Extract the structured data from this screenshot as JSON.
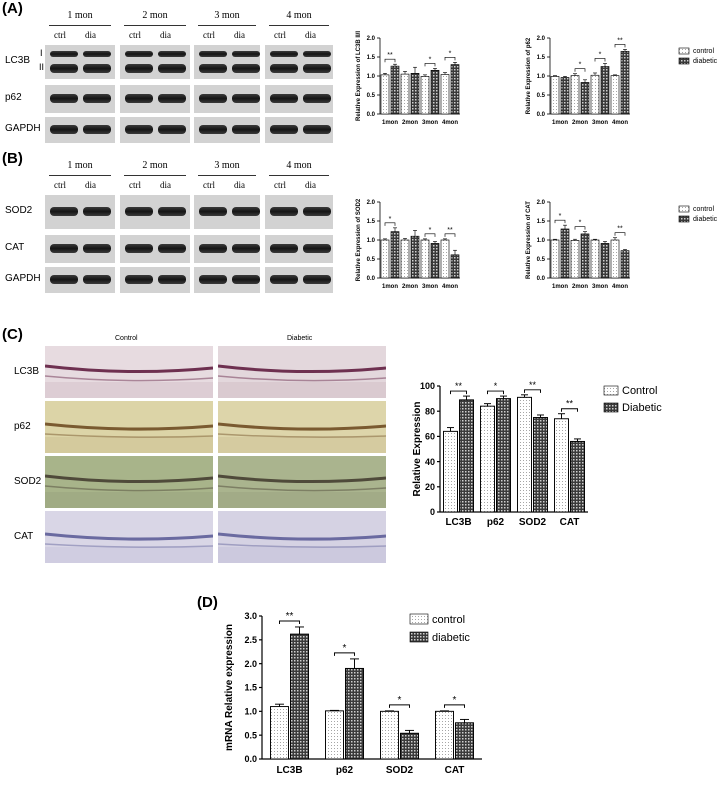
{
  "panels": {
    "a": "(A)",
    "b": "(B)",
    "c": "(C)",
    "d": "(D)"
  },
  "western": {
    "months": [
      "1 mon",
      "2 mon",
      "3 mon",
      "4 mon"
    ],
    "ctrl": "ctrl",
    "dia": "dia",
    "a_rows": [
      "LC3B",
      "p62",
      "GAPDH"
    ],
    "lc3_isoforms": [
      "I",
      "II"
    ],
    "b_rows": [
      "SOD2",
      "CAT",
      "GAPDH"
    ]
  },
  "ihc": {
    "col_control": "Control",
    "col_diabetic": "Diabetic",
    "rows": [
      "LC3B",
      "p62",
      "SOD2",
      "CAT"
    ]
  },
  "colors": {
    "control_fill": "#ffffff",
    "diabetic_fill": "#555555",
    "axis": "#000000"
  },
  "chart_data": [
    {
      "id": "a1",
      "type": "bar",
      "categories": [
        "1mon",
        "2mon",
        "3mon",
        "4mon"
      ],
      "ylabel": "Relative Expression of LC3B II/I",
      "ylim": [
        0,
        2.0
      ],
      "yticks": [
        "0.0",
        "0.5",
        "1.0",
        "1.5",
        "2.0"
      ],
      "series": [
        {
          "values": [
            1.03,
            1.05,
            0.99,
            1.04
          ],
          "errors": [
            0.04,
            0.07,
            0.04,
            0.05
          ]
        },
        {
          "values": [
            1.26,
            1.07,
            1.15,
            1.3
          ],
          "errors": [
            0.05,
            0.16,
            0.05,
            0.06
          ]
        }
      ],
      "significance": [
        "**",
        "",
        "*",
        "*"
      ]
    },
    {
      "id": "a2",
      "type": "bar",
      "categories": [
        "1mon",
        "2mon",
        "3mon",
        "4mon"
      ],
      "ylabel": "Relative Expression of p62",
      "ylim": [
        0,
        2.0
      ],
      "yticks": [
        "0.0",
        "0.5",
        "1.0",
        "1.5",
        "2.0"
      ],
      "series": [
        {
          "name": "control",
          "values": [
            0.99,
            1.01,
            1.02,
            1.01
          ],
          "errors": [
            0.02,
            0.05,
            0.06,
            0.02
          ]
        },
        {
          "name": "diabetic",
          "values": [
            0.96,
            0.83,
            1.25,
            1.65
          ],
          "errors": [
            0.03,
            0.07,
            0.08,
            0.05
          ]
        }
      ],
      "significance": [
        "",
        "*",
        "*",
        "**"
      ],
      "legend": "top-right"
    },
    {
      "id": "b1",
      "type": "bar",
      "categories": [
        "1mon",
        "2mon",
        "3mon",
        "4mon"
      ],
      "ylabel": "Relative Expression of SOD2",
      "ylim": [
        0,
        2.0
      ],
      "yticks": [
        "0.0",
        "0.5",
        "1.0",
        "1.5",
        "2.0"
      ],
      "series": [
        {
          "values": [
            1.0,
            1.0,
            1.0,
            1.0
          ],
          "errors": [
            0.03,
            0.04,
            0.03,
            0.03
          ]
        },
        {
          "values": [
            1.22,
            1.1,
            0.91,
            0.61
          ],
          "errors": [
            0.1,
            0.15,
            0.05,
            0.12
          ]
        }
      ],
      "significance": [
        "*",
        "",
        "*",
        "**"
      ]
    },
    {
      "id": "b2",
      "type": "bar",
      "categories": [
        "1mon",
        "2mon",
        "3mon",
        "4mon"
      ],
      "ylabel": "Relative Expression of CAT",
      "ylim": [
        0,
        2.0
      ],
      "yticks": [
        "0.0",
        "0.5",
        "1.0",
        "1.5",
        "2.0"
      ],
      "series": [
        {
          "name": "control",
          "values": [
            1.0,
            0.99,
            1.0,
            1.0
          ],
          "errors": [
            0.02,
            0.03,
            0.02,
            0.06
          ]
        },
        {
          "name": "diabetic",
          "values": [
            1.29,
            1.16,
            0.91,
            0.72
          ],
          "errors": [
            0.1,
            0.06,
            0.05,
            0.03
          ]
        }
      ],
      "significance": [
        "*",
        "*",
        "",
        "**"
      ],
      "legend": "top-right"
    },
    {
      "id": "c",
      "type": "bar",
      "categories": [
        "LC3B",
        "p62",
        "SOD2",
        "CAT"
      ],
      "ylabel": "Relative Expression",
      "ylim": [
        0,
        100
      ],
      "yticks": [
        "0",
        "20",
        "40",
        "60",
        "80",
        "100"
      ],
      "series": [
        {
          "name": "Control",
          "values": [
            64,
            84,
            91,
            74
          ],
          "errors": [
            3,
            2,
            2,
            4
          ]
        },
        {
          "name": "Diabetic",
          "values": [
            89,
            90,
            75,
            56
          ],
          "errors": [
            3,
            2,
            2,
            2
          ]
        }
      ],
      "significance": [
        "**",
        "*",
        "**",
        "**"
      ],
      "legend": "top-right"
    },
    {
      "id": "d",
      "type": "bar",
      "categories": [
        "LC3B",
        "p62",
        "SOD2",
        "CAT"
      ],
      "ylabel": "mRNA Relative expression",
      "ylim": [
        0,
        3.0
      ],
      "yticks": [
        "0.0",
        "0.5",
        "1.0",
        "1.5",
        "2.0",
        "2.5",
        "3.0"
      ],
      "series": [
        {
          "name": "control",
          "values": [
            1.1,
            1.01,
            1.0,
            1.0
          ],
          "errors": [
            0.05,
            0.01,
            0.01,
            0.01
          ]
        },
        {
          "name": "diabetic",
          "values": [
            2.62,
            1.9,
            0.54,
            0.76
          ],
          "errors": [
            0.15,
            0.2,
            0.06,
            0.07
          ]
        }
      ],
      "significance": [
        "**",
        "*",
        "*",
        "*"
      ],
      "legend": "top-right"
    }
  ]
}
